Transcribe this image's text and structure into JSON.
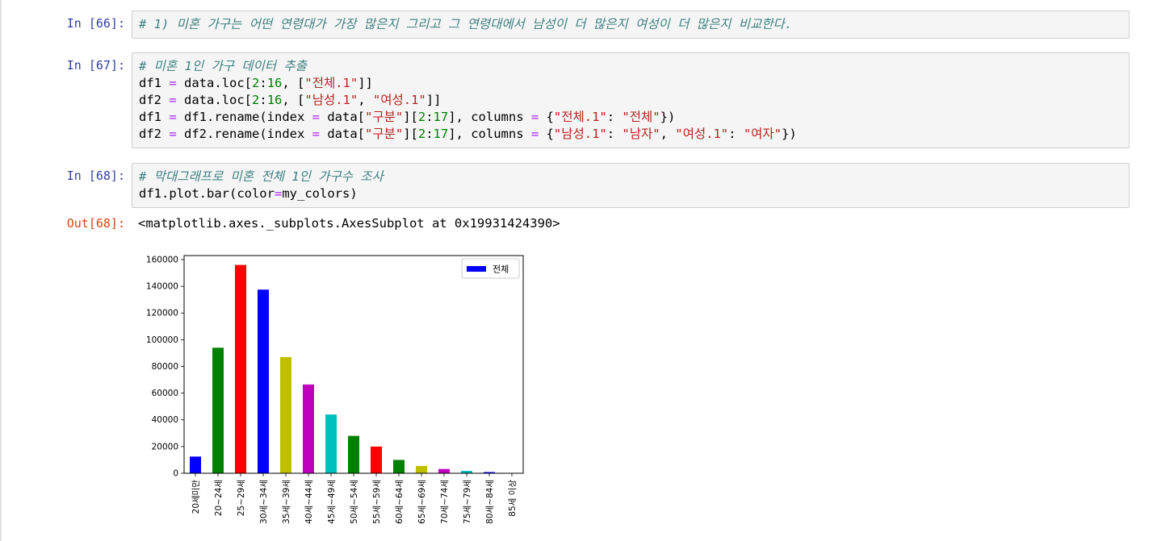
{
  "cells": [
    {
      "prompt": "In [66]:",
      "lines": [
        [
          {
            "t": "# 1) 미혼 가구는 어떤 연령대가 가장 많은지 그리고 그 연령대에서 남성이 더 많은지 여성이 더 많은지 비교한다.",
            "c": "cm"
          }
        ]
      ]
    },
    {
      "prompt": "In [67]:",
      "lines": [
        [
          {
            "t": "# 미혼 1인 가구 데이터 추출",
            "c": "cm"
          }
        ],
        [
          {
            "t": "df1 ",
            "c": ""
          },
          {
            "t": "=",
            "c": "op"
          },
          {
            "t": " data.loc[",
            "c": ""
          },
          {
            "t": "2",
            "c": "num"
          },
          {
            "t": ":",
            "c": ""
          },
          {
            "t": "16",
            "c": "num"
          },
          {
            "t": ", [",
            "c": ""
          },
          {
            "t": "\"전체.1\"",
            "c": "str"
          },
          {
            "t": "]]",
            "c": ""
          }
        ],
        [
          {
            "t": "df2 ",
            "c": ""
          },
          {
            "t": "=",
            "c": "op"
          },
          {
            "t": " data.loc[",
            "c": ""
          },
          {
            "t": "2",
            "c": "num"
          },
          {
            "t": ":",
            "c": ""
          },
          {
            "t": "16",
            "c": "num"
          },
          {
            "t": ", [",
            "c": ""
          },
          {
            "t": "\"남성.1\"",
            "c": "str"
          },
          {
            "t": ", ",
            "c": ""
          },
          {
            "t": "\"여성.1\"",
            "c": "str"
          },
          {
            "t": "]]",
            "c": ""
          }
        ],
        [
          {
            "t": "df1 ",
            "c": ""
          },
          {
            "t": "=",
            "c": "op"
          },
          {
            "t": " df1.rename(index ",
            "c": ""
          },
          {
            "t": "=",
            "c": "op"
          },
          {
            "t": " data[",
            "c": ""
          },
          {
            "t": "\"구분\"",
            "c": "str"
          },
          {
            "t": "][",
            "c": ""
          },
          {
            "t": "2",
            "c": "num"
          },
          {
            "t": ":",
            "c": ""
          },
          {
            "t": "17",
            "c": "num"
          },
          {
            "t": "], columns ",
            "c": ""
          },
          {
            "t": "=",
            "c": "op"
          },
          {
            "t": " {",
            "c": ""
          },
          {
            "t": "\"전체.1\"",
            "c": "str"
          },
          {
            "t": ": ",
            "c": ""
          },
          {
            "t": "\"전체\"",
            "c": "str"
          },
          {
            "t": "})",
            "c": ""
          }
        ],
        [
          {
            "t": "df2 ",
            "c": ""
          },
          {
            "t": "=",
            "c": "op"
          },
          {
            "t": " df2.rename(index ",
            "c": ""
          },
          {
            "t": "=",
            "c": "op"
          },
          {
            "t": " data[",
            "c": ""
          },
          {
            "t": "\"구분\"",
            "c": "str"
          },
          {
            "t": "][",
            "c": ""
          },
          {
            "t": "2",
            "c": "num"
          },
          {
            "t": ":",
            "c": ""
          },
          {
            "t": "17",
            "c": "num"
          },
          {
            "t": "], columns ",
            "c": ""
          },
          {
            "t": "=",
            "c": "op"
          },
          {
            "t": " {",
            "c": ""
          },
          {
            "t": "\"남성.1\"",
            "c": "str"
          },
          {
            "t": ": ",
            "c": ""
          },
          {
            "t": "\"남자\"",
            "c": "str"
          },
          {
            "t": ", ",
            "c": ""
          },
          {
            "t": "\"여성.1\"",
            "c": "str"
          },
          {
            "t": ": ",
            "c": ""
          },
          {
            "t": "\"여자\"",
            "c": "str"
          },
          {
            "t": "})",
            "c": ""
          }
        ]
      ]
    },
    {
      "prompt": "In [68]:",
      "lines": [
        [
          {
            "t": "# 막대그래프로 미혼 전체 1인 가구수 조사",
            "c": "cm"
          }
        ],
        [
          {
            "t": "df1.plot.bar(color",
            "c": ""
          },
          {
            "t": "=",
            "c": "op"
          },
          {
            "t": "my_colors)",
            "c": ""
          }
        ]
      ]
    }
  ],
  "output": {
    "prompt": "Out[68]:",
    "text": "<matplotlib.axes._subplots.AxesSubplot at 0x19931424390>"
  },
  "chart_data": {
    "type": "bar",
    "categories": [
      "20세미만",
      "20~24세",
      "25~29세",
      "30세~34세",
      "35세~39세",
      "40세~44세",
      "45세~49세",
      "50세~54세",
      "55세~59세",
      "60세~64세",
      "65세~69세",
      "70세~74세",
      "75세~79세",
      "80세~84세",
      "85세 이상"
    ],
    "series": [
      {
        "name": "전체",
        "values": [
          12500,
          94000,
          156000,
          137500,
          87000,
          66500,
          44000,
          28000,
          20000,
          10000,
          5500,
          3200,
          1800,
          900,
          200
        ],
        "colors": [
          "#0000ff",
          "#008000",
          "#ff0000",
          "#0000ff",
          "#bfbf00",
          "#bf00bf",
          "#00bfbf",
          "#008000",
          "#ff0000",
          "#008000",
          "#bfbf00",
          "#bf00bf",
          "#00bfbf",
          "#0000ff",
          "#008000"
        ]
      }
    ],
    "yticks": [
      0,
      20000,
      40000,
      60000,
      80000,
      100000,
      120000,
      140000,
      160000
    ],
    "ylim": [
      0,
      163000
    ],
    "legend": "top-right",
    "legend_color": "#0000ff",
    "grid": false
  }
}
